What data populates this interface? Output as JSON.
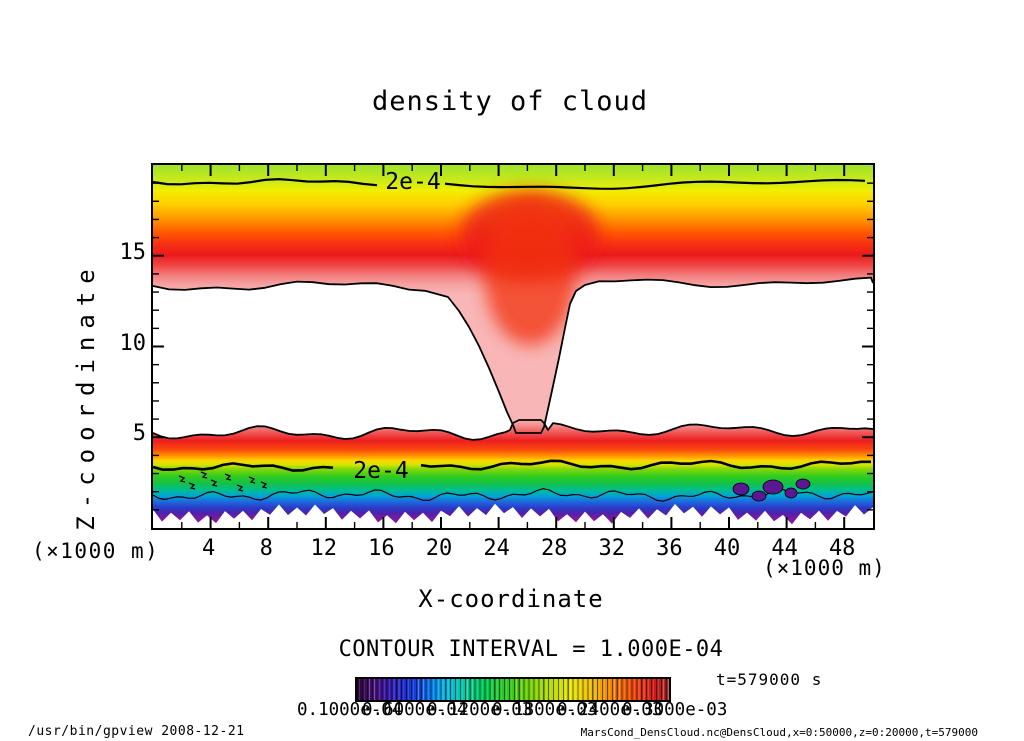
{
  "title": "density of cloud",
  "axes": {
    "x_label": "X-coordinate",
    "y_label": "Z-coordinate",
    "unit_left": "(×1000 m)",
    "unit_right": "(×1000 m)",
    "x_range": [
      0,
      50
    ],
    "y_range": [
      0,
      20
    ],
    "x_ticks": [
      4,
      8,
      12,
      16,
      20,
      24,
      28,
      32,
      36,
      40,
      44,
      48
    ],
    "x_minor_ticks": [
      2,
      6,
      10,
      14,
      18,
      22,
      26,
      30,
      34,
      38,
      42,
      46
    ],
    "y_ticks": [
      5,
      10,
      15
    ]
  },
  "contour_labels": {
    "upper": "2e-4",
    "lower": "2e-4"
  },
  "contour_interval_text": "CONTOUR INTERVAL = 1.000E-04",
  "colorbar": {
    "labels": [
      "0.1000e-04",
      "0.6000e-04",
      "0.1200e-03",
      "0.1800e-03",
      "0.2400e-03",
      "0.3000e-03"
    ],
    "low_color": "#2c0636",
    "high_color": "#a03028"
  },
  "time_label": "t=579000 s",
  "footer": {
    "left": "/usr/bin/gpview  2008-12-21",
    "right": "MarsCond_DensCloud.nc@DensCloud,x=0:50000,z=0:20000,t=579000"
  },
  "chart_data": {
    "type": "heatmap",
    "title": "density of cloud",
    "xlabel": "X-coordinate (×1000 m)",
    "ylabel": "Z-coordinate (×1000 m)",
    "xlim": [
      0,
      50
    ],
    "ylim": [
      0,
      20
    ],
    "quantity": "cloud density",
    "contour_interval": 0.0001,
    "colorbar_range": [
      1e-05,
      0.0003
    ],
    "time_seconds": 579000,
    "features": [
      {
        "name": "upper cloud deck",
        "x_extent": [
          0,
          50
        ],
        "z_extent": [
          13,
          20
        ],
        "peak_density": 0.0003,
        "peak_z": 15.5,
        "contour_2e-4_at_z": 19
      },
      {
        "name": "lower cloud deck",
        "x_extent": [
          0,
          50
        ],
        "z_extent": [
          0.5,
          5.5
        ],
        "peak_density": 0.0003,
        "peak_z": 4.3,
        "contour_2e-4_at_z": 3.3
      },
      {
        "name": "descending plume connecting decks",
        "x_center": 26.5,
        "x_width": 1.5,
        "z_extent": [
          5,
          13
        ],
        "density": 0.0001
      },
      {
        "name": "clear gap between decks",
        "z_extent": [
          5.5,
          13
        ],
        "density": "< 1e-4"
      }
    ]
  }
}
